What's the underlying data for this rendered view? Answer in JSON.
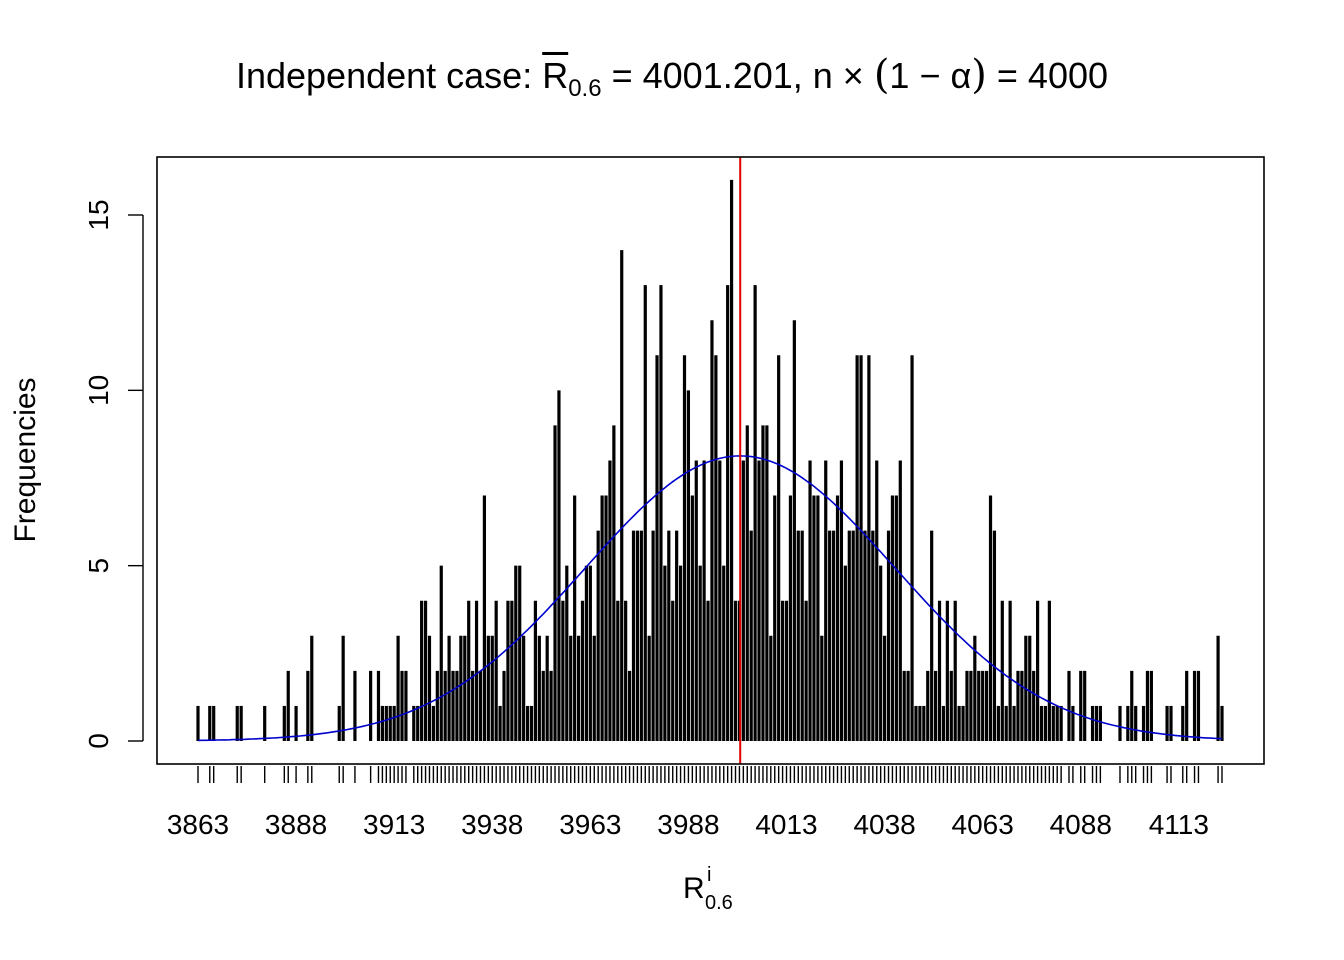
{
  "title": {
    "prefix": "Independent case: ",
    "rbar": "R",
    "rbar_sub": "0.6",
    "eq1": " = 4001.201, n × ",
    "paren_open": "(",
    "one_minus_alpha": "1 − α",
    "paren_close": ")",
    "eq2": " = 4000"
  },
  "ylabel": "Frequencies",
  "xlabel": {
    "main": "R",
    "sup": "i",
    "sub": "0.6"
  },
  "chart_data": {
    "type": "bar",
    "title": "Independent case: R̄0.6 = 4001.201, n × (1 − α) = 4000",
    "xlabel": "R^i_0.6",
    "ylabel": "Frequencies",
    "xlim": [
      3862,
      4119
    ],
    "ylim": [
      0,
      16
    ],
    "x_ticks": [
      3863,
      3888,
      3913,
      3938,
      3963,
      3988,
      4013,
      4038,
      4063,
      4088,
      4113
    ],
    "y_ticks": [
      0,
      5,
      10,
      15
    ],
    "mean_line": {
      "x": 4001.201,
      "color": "#e00000"
    },
    "normal_curve": {
      "mean": 4001.201,
      "sd": 39.5,
      "peak": 8.13,
      "color": "#0000cc"
    },
    "bar_color": "#000000",
    "frequencies": [
      [
        3863,
        1
      ],
      [
        3866,
        1
      ],
      [
        3867,
        1
      ],
      [
        3873,
        1
      ],
      [
        3874,
        1
      ],
      [
        3880,
        1
      ],
      [
        3885,
        1
      ],
      [
        3886,
        2
      ],
      [
        3888,
        1
      ],
      [
        3891,
        2
      ],
      [
        3892,
        3
      ],
      [
        3899,
        1
      ],
      [
        3900,
        3
      ],
      [
        3903,
        2
      ],
      [
        3907,
        2
      ],
      [
        3909,
        2
      ],
      [
        3910,
        1
      ],
      [
        3911,
        1
      ],
      [
        3912,
        1
      ],
      [
        3913,
        1
      ],
      [
        3914,
        3
      ],
      [
        3915,
        2
      ],
      [
        3916,
        2
      ],
      [
        3918,
        1
      ],
      [
        3919,
        1
      ],
      [
        3920,
        4
      ],
      [
        3921,
        4
      ],
      [
        3922,
        3
      ],
      [
        3923,
        1
      ],
      [
        3924,
        2
      ],
      [
        3925,
        5
      ],
      [
        3926,
        2
      ],
      [
        3927,
        3
      ],
      [
        3928,
        2
      ],
      [
        3929,
        2
      ],
      [
        3930,
        3
      ],
      [
        3931,
        3
      ],
      [
        3932,
        4
      ],
      [
        3933,
        2
      ],
      [
        3934,
        4
      ],
      [
        3935,
        2
      ],
      [
        3936,
        7
      ],
      [
        3937,
        3
      ],
      [
        3938,
        3
      ],
      [
        3939,
        4
      ],
      [
        3940,
        1
      ],
      [
        3941,
        2
      ],
      [
        3942,
        4
      ],
      [
        3943,
        4
      ],
      [
        3944,
        5
      ],
      [
        3945,
        5
      ],
      [
        3946,
        3
      ],
      [
        3947,
        1
      ],
      [
        3948,
        1
      ],
      [
        3949,
        4
      ],
      [
        3950,
        3
      ],
      [
        3951,
        2
      ],
      [
        3952,
        3
      ],
      [
        3953,
        2
      ],
      [
        3954,
        9
      ],
      [
        3955,
        10
      ],
      [
        3956,
        4
      ],
      [
        3957,
        5
      ],
      [
        3958,
        3
      ],
      [
        3959,
        7
      ],
      [
        3960,
        3
      ],
      [
        3961,
        4
      ],
      [
        3962,
        5
      ],
      [
        3963,
        5
      ],
      [
        3964,
        3
      ],
      [
        3965,
        6
      ],
      [
        3966,
        7
      ],
      [
        3967,
        7
      ],
      [
        3968,
        8
      ],
      [
        3969,
        9
      ],
      [
        3970,
        4
      ],
      [
        3971,
        14
      ],
      [
        3972,
        4
      ],
      [
        3973,
        2
      ],
      [
        3974,
        6
      ],
      [
        3975,
        6
      ],
      [
        3976,
        6
      ],
      [
        3977,
        13
      ],
      [
        3978,
        3
      ],
      [
        3979,
        6
      ],
      [
        3980,
        11
      ],
      [
        3981,
        13
      ],
      [
        3982,
        5
      ],
      [
        3983,
        6
      ],
      [
        3984,
        4
      ],
      [
        3985,
        6
      ],
      [
        3986,
        5
      ],
      [
        3987,
        11
      ],
      [
        3988,
        10
      ],
      [
        3989,
        7
      ],
      [
        3990,
        8
      ],
      [
        3991,
        5
      ],
      [
        3992,
        8
      ],
      [
        3993,
        4
      ],
      [
        3994,
        12
      ],
      [
        3995,
        11
      ],
      [
        3996,
        8
      ],
      [
        3997,
        5
      ],
      [
        3998,
        13
      ],
      [
        3999,
        16
      ],
      [
        4000,
        4
      ],
      [
        4001,
        4
      ],
      [
        4002,
        8
      ],
      [
        4003,
        9
      ],
      [
        4004,
        6
      ],
      [
        4005,
        13
      ],
      [
        4006,
        8
      ],
      [
        4007,
        9
      ],
      [
        4008,
        9
      ],
      [
        4009,
        3
      ],
      [
        4010,
        7
      ],
      [
        4011,
        11
      ],
      [
        4012,
        4
      ],
      [
        4013,
        4
      ],
      [
        4014,
        7
      ],
      [
        4015,
        12
      ],
      [
        4016,
        6
      ],
      [
        4017,
        6
      ],
      [
        4018,
        4
      ],
      [
        4019,
        8
      ],
      [
        4020,
        7
      ],
      [
        4021,
        7
      ],
      [
        4022,
        3
      ],
      [
        4023,
        8
      ],
      [
        4024,
        6
      ],
      [
        4025,
        6
      ],
      [
        4026,
        7
      ],
      [
        4027,
        8
      ],
      [
        4028,
        5
      ],
      [
        4029,
        6
      ],
      [
        4030,
        6
      ],
      [
        4031,
        11
      ],
      [
        4032,
        11
      ],
      [
        4033,
        6
      ],
      [
        4034,
        11
      ],
      [
        4035,
        6
      ],
      [
        4036,
        8
      ],
      [
        4037,
        5
      ],
      [
        4038,
        3
      ],
      [
        4039,
        6
      ],
      [
        4040,
        7
      ],
      [
        4041,
        7
      ],
      [
        4042,
        8
      ],
      [
        4043,
        2
      ],
      [
        4044,
        2
      ],
      [
        4045,
        11
      ],
      [
        4046,
        1
      ],
      [
        4047,
        1
      ],
      [
        4048,
        1
      ],
      [
        4049,
        2
      ],
      [
        4050,
        6
      ],
      [
        4051,
        2
      ],
      [
        4052,
        4
      ],
      [
        4053,
        1
      ],
      [
        4054,
        4
      ],
      [
        4055,
        2
      ],
      [
        4056,
        4
      ],
      [
        4057,
        1
      ],
      [
        4058,
        1
      ],
      [
        4059,
        2
      ],
      [
        4060,
        2
      ],
      [
        4061,
        3
      ],
      [
        4062,
        2
      ],
      [
        4063,
        2
      ],
      [
        4064,
        2
      ],
      [
        4065,
        7
      ],
      [
        4066,
        6
      ],
      [
        4067,
        1
      ],
      [
        4068,
        4
      ],
      [
        4069,
        1
      ],
      [
        4070,
        4
      ],
      [
        4071,
        1
      ],
      [
        4072,
        2
      ],
      [
        4073,
        2
      ],
      [
        4074,
        3
      ],
      [
        4075,
        3
      ],
      [
        4076,
        2
      ],
      [
        4077,
        4
      ],
      [
        4078,
        1
      ],
      [
        4079,
        1
      ],
      [
        4080,
        4
      ],
      [
        4081,
        1
      ],
      [
        4082,
        1
      ],
      [
        4083,
        1
      ],
      [
        4085,
        2
      ],
      [
        4086,
        1
      ],
      [
        4088,
        2
      ],
      [
        4089,
        2
      ],
      [
        4091,
        1
      ],
      [
        4092,
        1
      ],
      [
        4093,
        1
      ],
      [
        4098,
        1
      ],
      [
        4100,
        1
      ],
      [
        4101,
        2
      ],
      [
        4102,
        1
      ],
      [
        4104,
        1
      ],
      [
        4105,
        2
      ],
      [
        4106,
        2
      ],
      [
        4110,
        1
      ],
      [
        4111,
        1
      ],
      [
        4114,
        1
      ],
      [
        4115,
        2
      ],
      [
        4117,
        2
      ],
      [
        4118,
        2
      ],
      [
        4123,
        3
      ],
      [
        4124,
        1
      ]
    ]
  }
}
